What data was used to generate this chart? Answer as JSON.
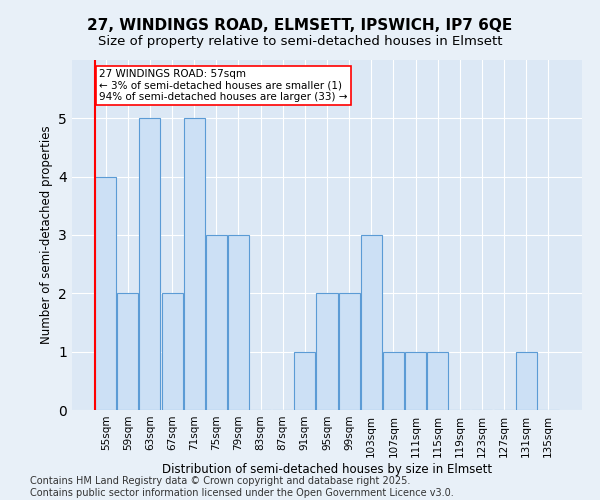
{
  "title1": "27, WINDINGS ROAD, ELMSETT, IPSWICH, IP7 6QE",
  "title2": "Size of property relative to semi-detached houses in Elmsett",
  "xlabel": "Distribution of semi-detached houses by size in Elmsett",
  "ylabel": "Number of semi-detached properties",
  "bins": [
    "55sqm",
    "59sqm",
    "63sqm",
    "67sqm",
    "71sqm",
    "75sqm",
    "79sqm",
    "83sqm",
    "87sqm",
    "91sqm",
    "95sqm",
    "99sqm",
    "103sqm",
    "107sqm",
    "111sqm",
    "115sqm",
    "119sqm",
    "123sqm",
    "127sqm",
    "131sqm",
    "135sqm"
  ],
  "values": [
    4,
    2,
    5,
    2,
    5,
    3,
    3,
    0,
    0,
    1,
    2,
    2,
    3,
    1,
    1,
    1,
    0,
    0,
    0,
    1,
    0
  ],
  "bar_color": "#cce0f5",
  "bar_edgecolor": "#5b9bd5",
  "red_line_x": -0.5,
  "annotation_text": "27 WINDINGS ROAD: 57sqm\n← 3% of semi-detached houses are smaller (1)\n94% of semi-detached houses are larger (33) →",
  "ylim": [
    0,
    6
  ],
  "yticks": [
    0,
    1,
    2,
    3,
    4,
    5
  ],
  "footer": "Contains HM Land Registry data © Crown copyright and database right 2025.\nContains public sector information licensed under the Open Government Licence v3.0.",
  "bg_color": "#e8f0f8",
  "plot_bg_color": "#dce8f5",
  "grid_color": "#ffffff",
  "title1_fontsize": 11,
  "title2_fontsize": 9.5,
  "xlabel_fontsize": 8.5,
  "ylabel_fontsize": 8.5,
  "tick_fontsize": 7.5,
  "annotation_fontsize": 7.5,
  "footer_fontsize": 7
}
